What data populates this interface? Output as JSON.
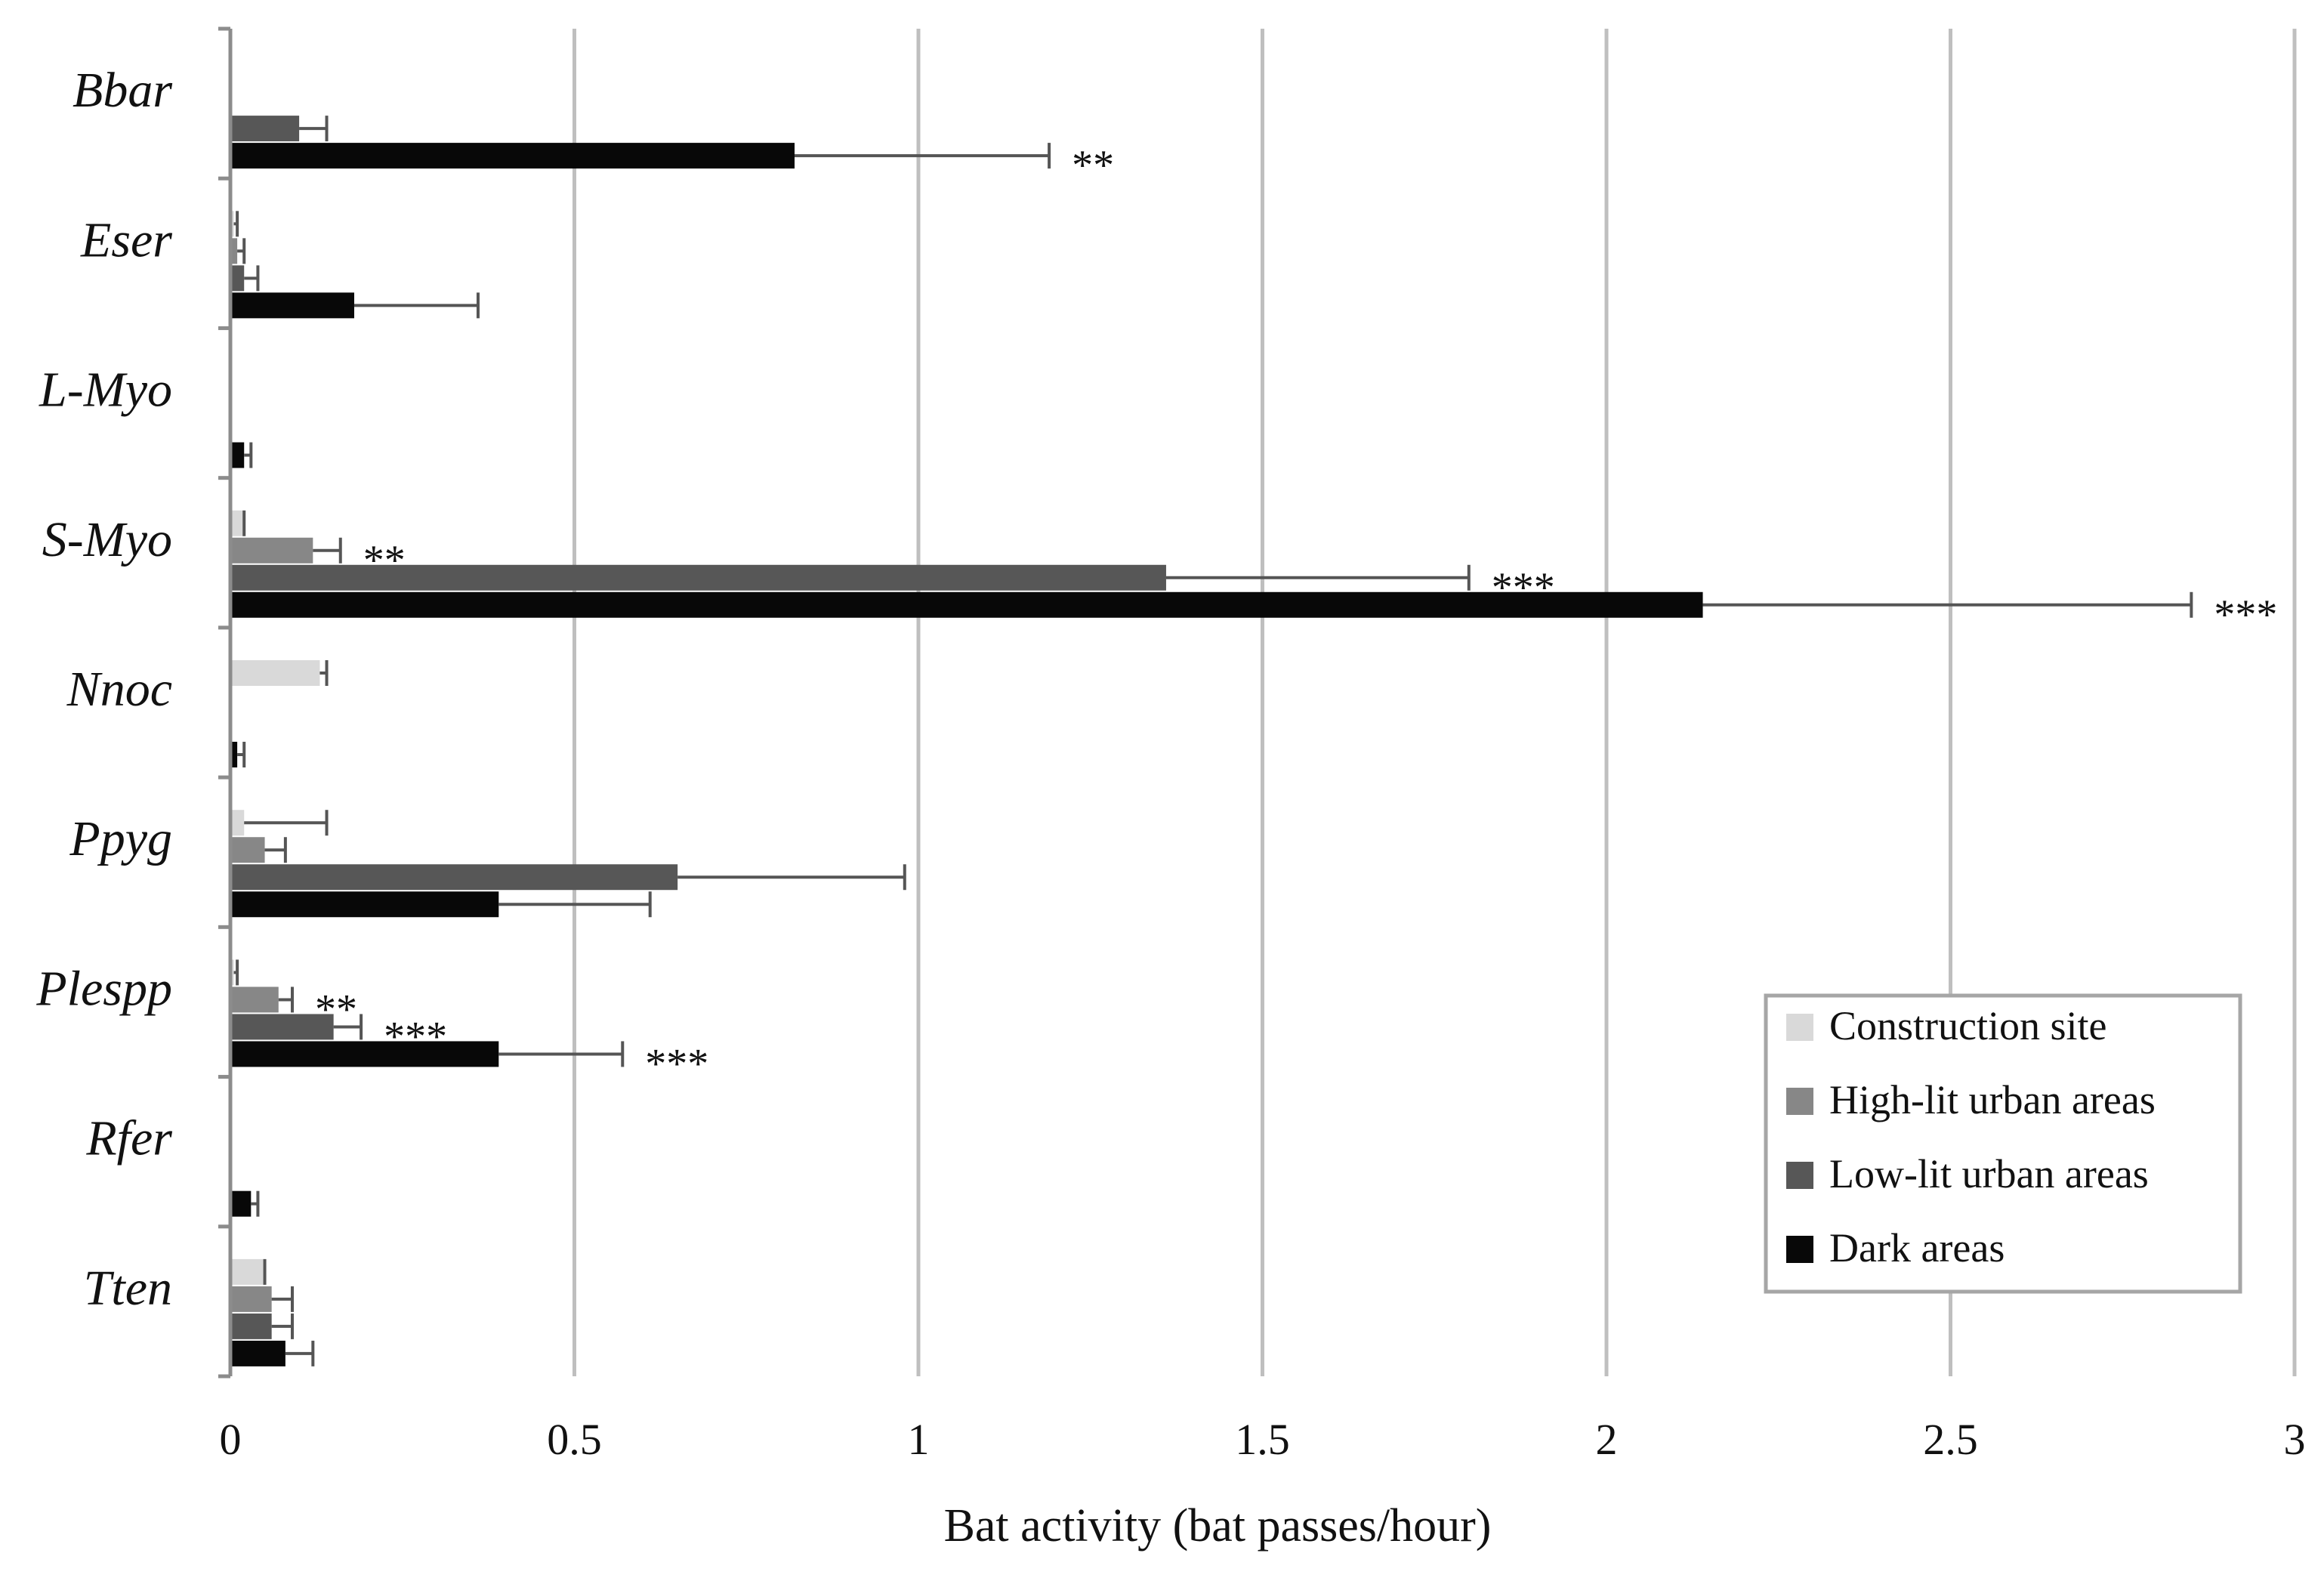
{
  "chart_data": {
    "type": "bar",
    "orientation": "horizontal",
    "title": "",
    "xlabel": "Bat activity (bat passes/hour)",
    "ylabel": "",
    "xlim": [
      0,
      3
    ],
    "x_ticks": [
      "0",
      "0.5",
      "1",
      "1.5",
      "2",
      "2.5",
      "3"
    ],
    "x_tick_values": [
      0,
      0.5,
      1,
      1.5,
      2,
      2.5,
      3
    ],
    "grid": true,
    "legend_position": "bottom-right",
    "categories": [
      "Bbar",
      "Eser",
      "L-Myo",
      "S-Myo",
      "Nnoc",
      "Ppyg",
      "Plespp",
      "Rfer",
      "Tten"
    ],
    "series": [
      {
        "name": "Construction site",
        "color": "#d9d9d9",
        "values": [
          0,
          0.005,
          0,
          0.02,
          0.13,
          0.02,
          0.005,
          0,
          0.05
        ],
        "errors": [
          0,
          0.01,
          0,
          0.02,
          0.14,
          0.14,
          0.01,
          0,
          0.05
        ],
        "significance": [
          "",
          "",
          "",
          "",
          "",
          "",
          "",
          "",
          ""
        ]
      },
      {
        "name": "High-lit urban areas",
        "color": "#878787",
        "values": [
          0,
          0.01,
          0,
          0.12,
          0,
          0.05,
          0.07,
          0,
          0.06
        ],
        "errors": [
          0,
          0.02,
          0,
          0.16,
          0,
          0.08,
          0.09,
          0,
          0.09
        ],
        "significance": [
          "",
          "",
          "",
          "**",
          "",
          "",
          "**",
          "",
          ""
        ]
      },
      {
        "name": "Low-lit urban areas",
        "color": "#575757",
        "values": [
          0.1,
          0.02,
          0,
          1.36,
          0,
          0.65,
          0.15,
          0,
          0.06
        ],
        "errors": [
          0.14,
          0.04,
          0,
          1.8,
          0,
          0.98,
          0.19,
          0,
          0.09
        ],
        "significance": [
          "",
          "",
          "",
          "***",
          "",
          "",
          "***",
          "",
          ""
        ]
      },
      {
        "name": "Dark areas",
        "color": "#080808",
        "values": [
          0.82,
          0.18,
          0.02,
          2.14,
          0.01,
          0.39,
          0.39,
          0.03,
          0.08
        ],
        "errors": [
          1.19,
          0.36,
          0.03,
          2.85,
          0.02,
          0.61,
          0.57,
          0.04,
          0.12
        ],
        "significance": [
          "**",
          "",
          "",
          "***",
          "",
          "",
          "***",
          "",
          ""
        ]
      }
    ]
  }
}
